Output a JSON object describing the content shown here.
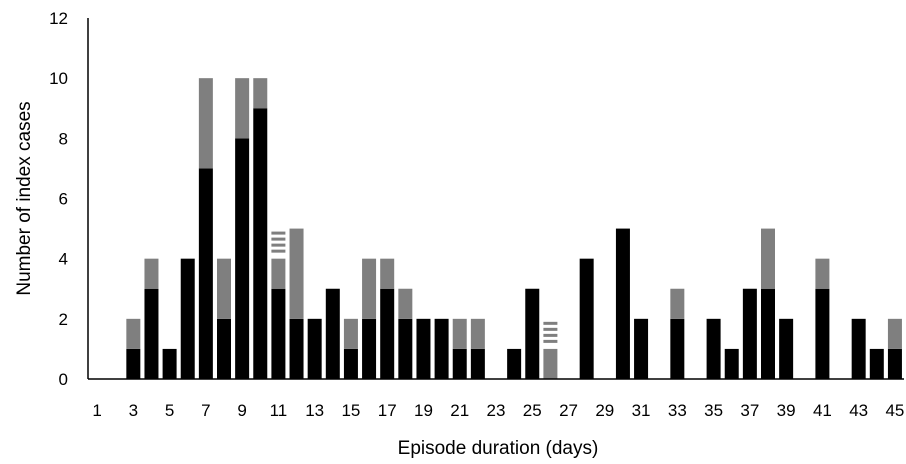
{
  "chart_data": {
    "type": "bar",
    "stacked": true,
    "title": "",
    "xlabel": "Episode duration (days)",
    "ylabel": "Number of index cases",
    "ylim": [
      0,
      12
    ],
    "yticks": [
      0,
      2,
      4,
      6,
      8,
      10,
      12
    ],
    "x": [
      1,
      2,
      3,
      4,
      5,
      6,
      7,
      8,
      9,
      10,
      11,
      12,
      13,
      14,
      15,
      16,
      17,
      18,
      19,
      20,
      21,
      22,
      23,
      24,
      25,
      26,
      27,
      28,
      29,
      30,
      31,
      32,
      33,
      34,
      35,
      36,
      37,
      38,
      39,
      40,
      41,
      42,
      43,
      44,
      45
    ],
    "xtick_labels": [
      "1",
      "3",
      "5",
      "7",
      "9",
      "11",
      "13",
      "15",
      "17",
      "19",
      "21",
      "23",
      "25",
      "27",
      "29",
      "31",
      "33",
      "35",
      "37",
      "39",
      "41",
      "43",
      "45"
    ],
    "grid": false,
    "legend": "none",
    "series": [
      {
        "color": "#000000",
        "pattern": "solid",
        "values": [
          0,
          0,
          1,
          3,
          1,
          4,
          7,
          2,
          8,
          9,
          3,
          2,
          2,
          3,
          1,
          2,
          3,
          2,
          2,
          2,
          1,
          1,
          0,
          1,
          3,
          0,
          0,
          4,
          0,
          5,
          2,
          0,
          2,
          0,
          2,
          1,
          3,
          3,
          2,
          0,
          3,
          0,
          2,
          1,
          1
        ]
      },
      {
        "color": "#7f7f7f",
        "pattern": "solid",
        "values": [
          0,
          0,
          1,
          1,
          0,
          0,
          3,
          2,
          2,
          1,
          1,
          3,
          0,
          0,
          1,
          2,
          1,
          1,
          0,
          0,
          1,
          1,
          0,
          0,
          0,
          1,
          0,
          0,
          0,
          0,
          0,
          0,
          1,
          0,
          0,
          0,
          0,
          2,
          0,
          0,
          1,
          0,
          0,
          0,
          1
        ]
      },
      {
        "color": "#7f7f7f",
        "pattern": "dashed",
        "values": [
          0,
          0,
          0,
          0,
          0,
          0,
          0,
          0,
          0,
          0,
          1,
          0,
          0,
          0,
          0,
          0,
          0,
          0,
          0,
          0,
          0,
          0,
          0,
          0,
          0,
          1,
          0,
          0,
          0,
          0,
          0,
          0,
          0,
          0,
          0,
          0,
          0,
          0,
          0,
          0,
          0,
          0,
          0,
          0,
          0
        ]
      }
    ]
  }
}
